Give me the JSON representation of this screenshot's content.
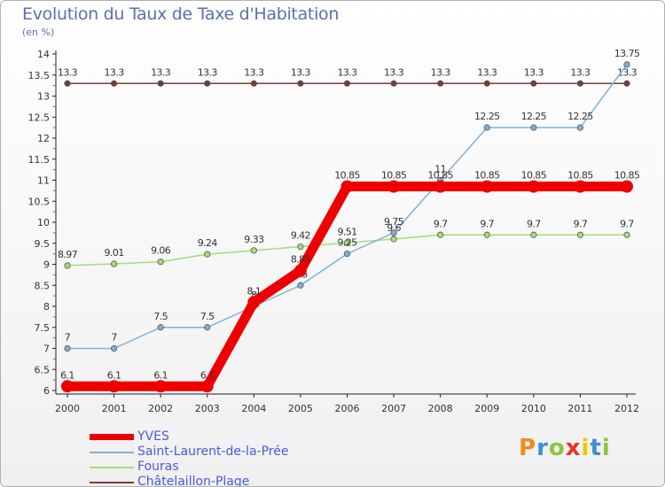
{
  "chart_data": {
    "type": "line",
    "title": "Evolution du Taux de Taxe d'Habitation",
    "ylabel": "(en %)",
    "xlabel": "",
    "ylim": [
      6,
      14
    ],
    "yticks": [
      "6",
      "6.5",
      "7",
      "7.5",
      "8",
      "8.5",
      "9",
      "9.5",
      "10",
      "10.5",
      "11",
      "11.5",
      "12",
      "12.5",
      "13",
      "13.5",
      "14"
    ],
    "categories": [
      "2000",
      "2001",
      "2002",
      "2003",
      "2004",
      "2005",
      "2006",
      "2007",
      "2008",
      "2009",
      "2010",
      "2011",
      "2012"
    ],
    "series": [
      {
        "name": "Châtelaillon-Plage",
        "color": "#7a3a3a",
        "values": [
          13.3,
          13.3,
          13.3,
          13.3,
          13.3,
          13.3,
          13.3,
          13.3,
          13.3,
          13.3,
          13.3,
          13.3,
          13.3
        ],
        "labels": [
          "13.3",
          "13.3",
          "13.3",
          "13.3",
          "13.3",
          "13.3",
          "13.3",
          "13.3",
          "13.3",
          "13.3",
          "13.3",
          "13.3",
          "13.3"
        ]
      },
      {
        "name": "Fouras",
        "color": "#a6dc78",
        "values": [
          8.97,
          9.01,
          9.06,
          9.24,
          9.33,
          9.42,
          9.51,
          9.6,
          9.7,
          9.7,
          9.7,
          9.7,
          9.7
        ],
        "labels": [
          "8.97",
          "9.01",
          "9.06",
          "9.24",
          "9.33",
          "9.42",
          "9.51",
          "9.6",
          "9.7",
          "9.7",
          "9.7",
          "9.7",
          "9.7"
        ]
      },
      {
        "name": "Saint-Laurent-de-la-Prée",
        "color": "#7fb0d8",
        "values": [
          7,
          7,
          7.5,
          7.5,
          8,
          8.5,
          9.25,
          9.75,
          11,
          12.25,
          12.25,
          12.25,
          13.75
        ],
        "labels": [
          "7",
          "7",
          "7.5",
          "7.5",
          "8",
          "8.5",
          "9.25",
          "9.75",
          "11",
          "12.25",
          "12.25",
          "12.25",
          "13.75"
        ]
      },
      {
        "name": "YVES",
        "color": "#ee0000",
        "values": [
          6.1,
          6.1,
          6.1,
          6.1,
          8.1,
          8.85,
          10.85,
          10.85,
          10.85,
          10.85,
          10.85,
          10.85,
          10.85
        ],
        "labels": [
          "6.1",
          "6.1",
          "6.1",
          "6.1",
          "8.1",
          "8.85",
          "10.85",
          "10.85",
          "10.85",
          "10.85",
          "10.85",
          "10.85",
          "10.85"
        ]
      }
    ],
    "legend": [
      "YVES",
      "Saint-Laurent-de-la-Prée",
      "Fouras",
      "Châtelaillon-Plage"
    ],
    "legend_position": "bottom-left"
  },
  "branding": {
    "logo_text": "Proxiti"
  }
}
